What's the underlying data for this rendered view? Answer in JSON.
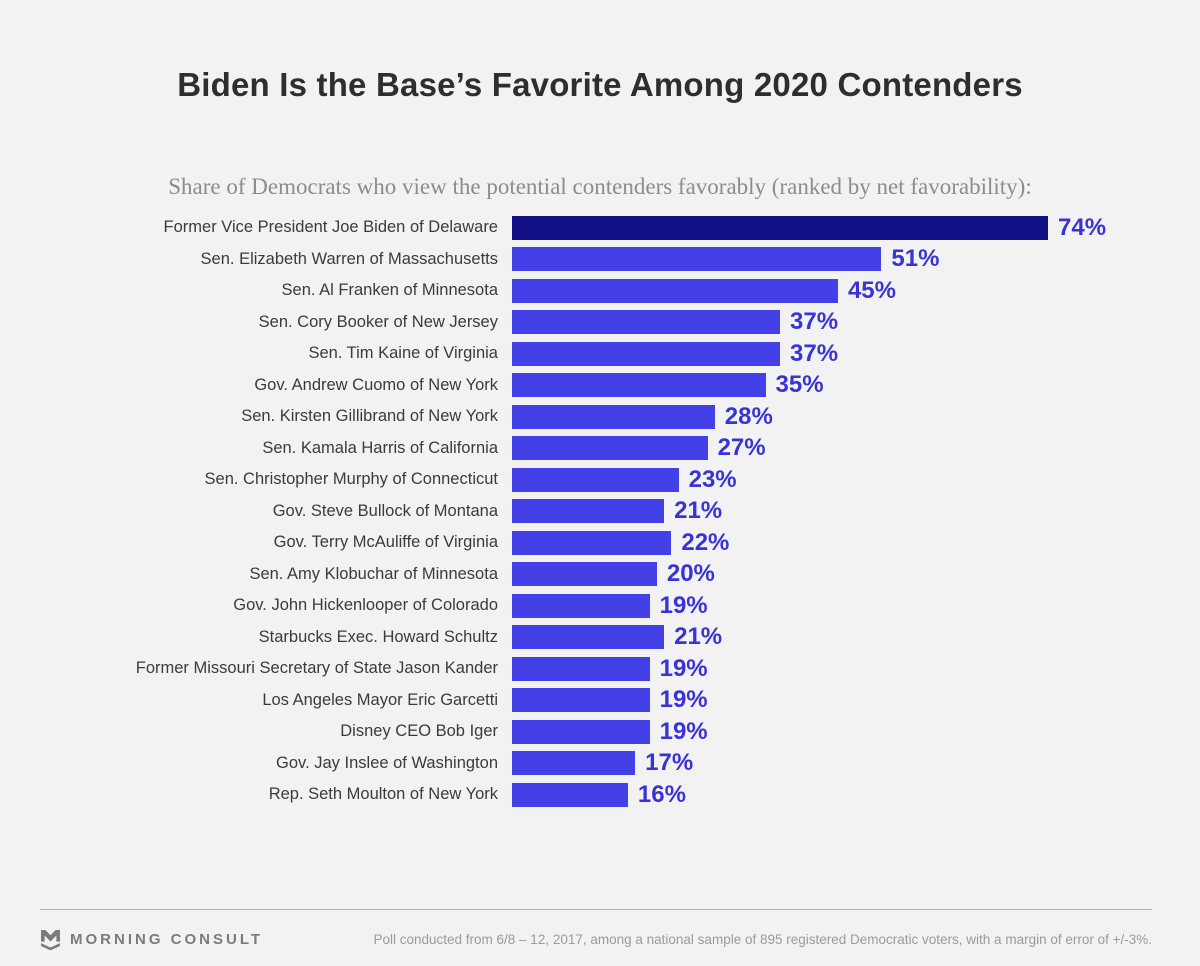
{
  "header": {
    "title": "Biden Is the Base’s Favorite Among 2020 Contenders",
    "subtitle": "Share of Democrats who view the potential contenders favorably (ranked by net favorability):"
  },
  "chart_data": {
    "type": "bar",
    "orientation": "horizontal",
    "title": "Biden Is the Base’s Favorite Among 2020 Contenders",
    "subtitle": "Share of Democrats who view the potential contenders favorably (ranked by net favorability):",
    "categories": [
      "Former Vice President Joe Biden of Delaware",
      "Sen. Elizabeth Warren of Massachusetts",
      "Sen. Al Franken of Minnesota",
      "Sen. Cory Booker of New Jersey",
      "Sen. Tim Kaine of Virginia",
      "Gov. Andrew Cuomo of New York",
      "Sen. Kirsten Gillibrand of New York",
      "Sen. Kamala Harris of California",
      "Sen. Christopher Murphy of Connecticut",
      "Gov. Steve Bullock of Montana",
      "Gov. Terry McAuliffe of Virginia",
      "Sen. Amy Klobuchar of Minnesota",
      "Gov. John Hickenlooper of Colorado",
      "Starbucks Exec. Howard Schultz",
      "Former Missouri Secretary of State Jason Kander",
      "Los Angeles Mayor Eric Garcetti",
      "Disney CEO Bob Iger",
      "Gov. Jay Inslee of Washington",
      "Rep. Seth Moulton of New York"
    ],
    "values": [
      74,
      51,
      45,
      37,
      37,
      35,
      28,
      27,
      23,
      21,
      22,
      20,
      19,
      21,
      19,
      19,
      19,
      17,
      16
    ],
    "value_suffix": "%",
    "xlim": [
      0,
      74
    ],
    "highlight_index": 0,
    "bar_color": "#4340e8",
    "highlight_color": "#131086",
    "value_label_color": "#3933d6",
    "grid": false,
    "legend_position": "none"
  },
  "footer": {
    "logo_text": "MORNING CONSULT",
    "note": "Poll conducted from 6/8 – 12, 2017, among a national sample of 895 registered Democratic voters, with a margin of error of +/-3%."
  }
}
